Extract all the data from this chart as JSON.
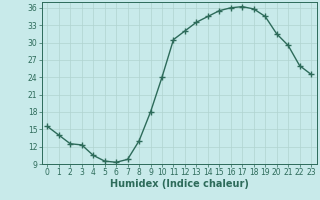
{
  "x": [
    0,
    1,
    2,
    3,
    4,
    5,
    6,
    7,
    8,
    9,
    10,
    11,
    12,
    13,
    14,
    15,
    16,
    17,
    18,
    19,
    20,
    21,
    22,
    23
  ],
  "y": [
    15.5,
    14.0,
    12.5,
    12.3,
    10.5,
    9.5,
    9.3,
    9.8,
    13.0,
    18.0,
    24.0,
    30.5,
    32.0,
    33.5,
    34.5,
    35.5,
    36.0,
    36.2,
    35.8,
    34.5,
    31.5,
    29.5,
    26.0,
    24.5
  ],
  "line_color": "#2d6b5a",
  "marker": "+",
  "marker_size": 4,
  "marker_lw": 1.0,
  "line_width": 1.0,
  "bg_color": "#c8eaea",
  "grid_color": "#b0d4d0",
  "xlabel": "Humidex (Indice chaleur)",
  "xlim": [
    -0.5,
    23.5
  ],
  "ylim": [
    9,
    37
  ],
  "yticks": [
    9,
    12,
    15,
    18,
    21,
    24,
    27,
    30,
    33,
    36
  ],
  "xticks": [
    0,
    1,
    2,
    3,
    4,
    5,
    6,
    7,
    8,
    9,
    10,
    11,
    12,
    13,
    14,
    15,
    16,
    17,
    18,
    19,
    20,
    21,
    22,
    23
  ],
  "tick_fontsize": 5.5,
  "xlabel_fontsize": 7
}
